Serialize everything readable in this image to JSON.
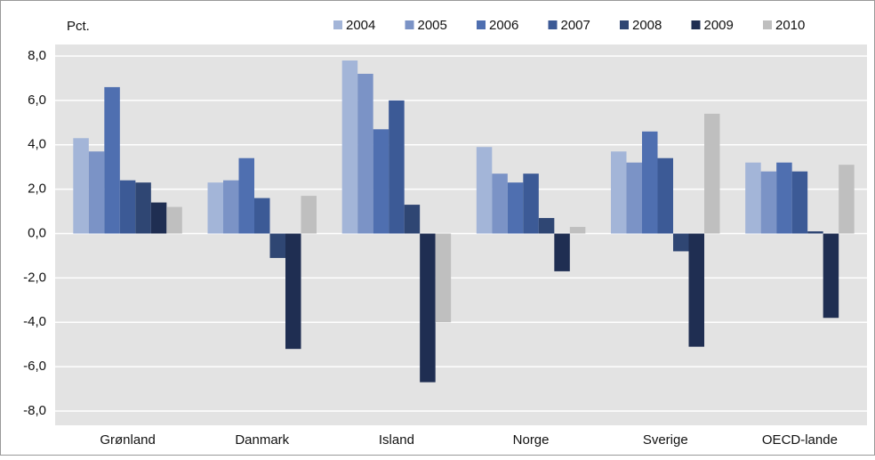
{
  "chart_data": {
    "type": "bar",
    "y_label": "Pct.",
    "categories": [
      "Grønland",
      "Danmark",
      "Island",
      "Norge",
      "Sverige",
      "OECD-lande"
    ],
    "series": [
      {
        "name": "2004",
        "color": "#a3b5d8",
        "values": [
          4.3,
          2.3,
          7.8,
          3.9,
          3.7,
          3.2
        ]
      },
      {
        "name": "2005",
        "color": "#7b93c6",
        "values": [
          3.7,
          2.4,
          7.2,
          2.7,
          3.2,
          2.8
        ]
      },
      {
        "name": "2006",
        "color": "#4f6fb0",
        "values": [
          6.6,
          3.4,
          4.7,
          2.3,
          4.6,
          3.2
        ]
      },
      {
        "name": "2007",
        "color": "#3c5a96",
        "values": [
          2.4,
          1.6,
          6.0,
          2.7,
          3.4,
          2.8
        ]
      },
      {
        "name": "2008",
        "color": "#2f4673",
        "values": [
          2.3,
          -1.1,
          1.3,
          0.7,
          -0.8,
          0.1
        ]
      },
      {
        "name": "2009",
        "color": "#1f2e52",
        "values": [
          1.4,
          -5.2,
          -6.7,
          -1.7,
          -5.1,
          -3.8
        ]
      },
      {
        "name": "2010",
        "color": "#bfbfbf",
        "values": [
          1.2,
          1.7,
          -4.0,
          0.3,
          5.4,
          3.1
        ]
      }
    ],
    "ylim": [
      -8,
      8
    ],
    "yticks": [
      {
        "value": 8,
        "label": "8,0"
      },
      {
        "value": 6,
        "label": "6,0"
      },
      {
        "value": 4,
        "label": "4,0"
      },
      {
        "value": 2,
        "label": "2,0"
      },
      {
        "value": 0,
        "label": "0,0"
      },
      {
        "value": -2,
        "label": "-2,0"
      },
      {
        "value": -4,
        "label": "-4,0"
      },
      {
        "value": -6,
        "label": "-6,0"
      },
      {
        "value": -8,
        "label": "-8,0"
      }
    ],
    "grid": true,
    "legend": "top"
  }
}
